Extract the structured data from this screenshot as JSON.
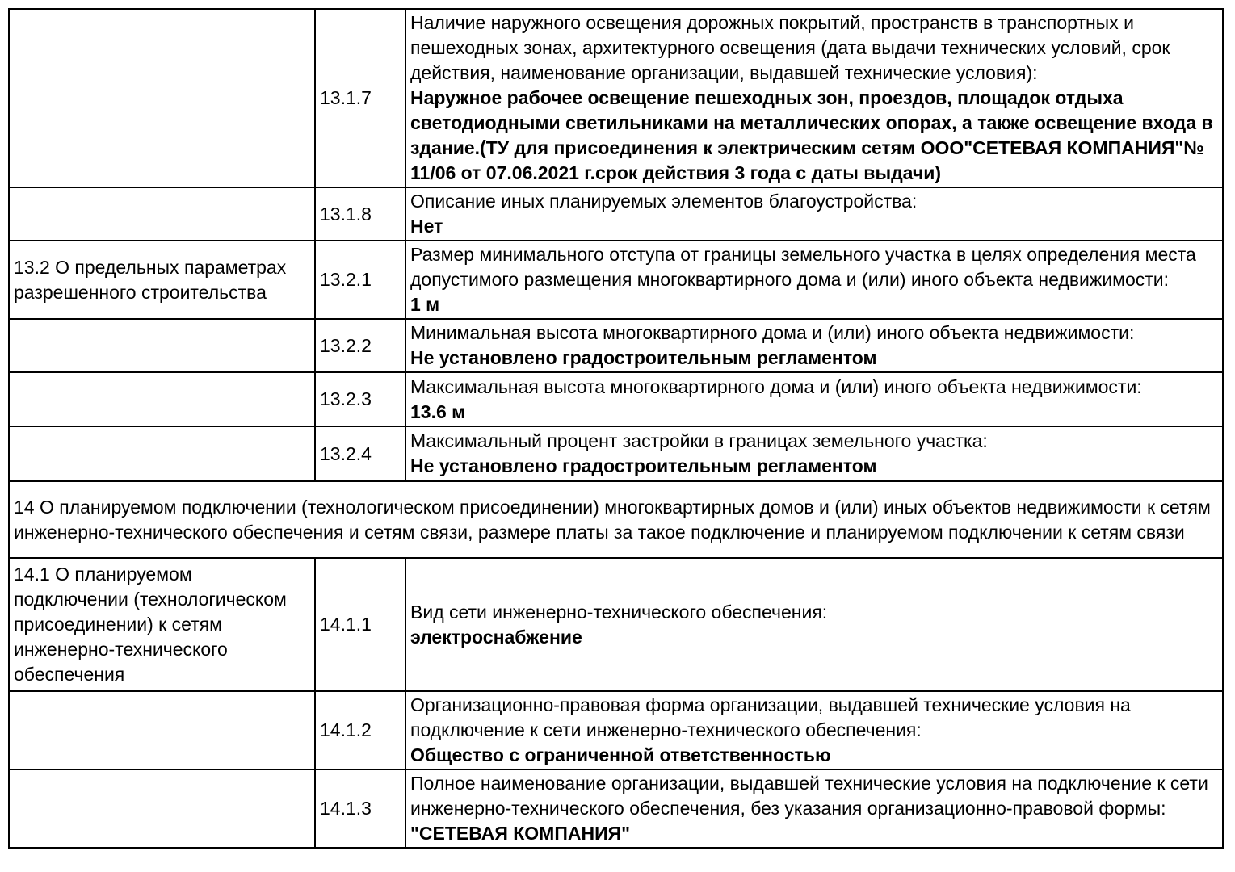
{
  "page": {
    "background_color": "#ffffff",
    "text_color": "#000000",
    "border_color": "#000000"
  },
  "table": {
    "rows": [
      {
        "section": "",
        "number": "13.1.7",
        "question": "Наличие наружного освещения дорожных покрытий, пространств в транспортных и пешеходных зонах, архитектурного освещения (дата выдачи технических условий, срок действия, наименование организации, выдавшей технические условия):",
        "answer": "Наружное рабочее освещение пешеходных зон, проездов, площадок отдыха светодиодными светильниками на металлических опорах, а также освещение входа в здание.(ТУ для присоединения к электрическим сетям ООО\"СЕТЕВАЯ КОМПАНИЯ\"№ 11/06 от 07.06.2021 г.срок действия 3 года с даты выдачи)"
      },
      {
        "section": "",
        "number": "13.1.8",
        "question": "Описание иных планируемых элементов благоустройства:",
        "answer": "Нет"
      },
      {
        "section": "13.2 О предельных параметрах разрешенного строительства",
        "number": "13.2.1",
        "question": "Размер минимального отступа от границы земельного участка в целях определения места допустимого размещения многоквартирного дома и (или) иного объекта недвижимости:",
        "answer": "1 м"
      },
      {
        "section": "",
        "number": "13.2.2",
        "question": "Минимальная высота многоквартирного дома и (или) иного объекта недвижимости:",
        "answer": "Не установлено градостроительным регламентом"
      },
      {
        "section": "",
        "number": "13.2.3",
        "question": "Максимальная высота многоквартирного дома и (или) иного объекта недвижимости:",
        "answer": "13.6 м"
      },
      {
        "section": "",
        "number": "13.2.4",
        "question": "Максимальный процент застройки в границах земельного участка:",
        "answer": "Не установлено градостроительным регламентом"
      },
      {
        "text": "14 О планируемом подключении (технологическом присоединении) многоквартирных домов и (или) иных объектов недвижимости к сетям инженерно-технического обеспечения и сетям связи, размере платы за такое подключение и планируемом подключении к сетям связи"
      },
      {
        "section": "14.1 О планируемом подключении (технологическом присоединении) к сетям инженерно-технического обеспечения",
        "number": "14.1.1",
        "question": "Вид сети инженерно-технического обеспечения:",
        "answer": "электроснабжение"
      },
      {
        "section": "",
        "number": "14.1.2",
        "question": "Организационно-правовая форма организации, выдавшей технические условия на подключение к сети инженерно-технического обеспечения:",
        "answer": "Общество с ограниченной ответственностью"
      },
      {
        "section": "",
        "number": "14.1.3",
        "question": "Полное наименование организации, выдавшей технические условия на подключение к сети инженерно-технического обеспечения, без указания организационно-правовой формы:",
        "answer": "\"СЕТЕВАЯ КОМПАНИЯ\""
      }
    ]
  }
}
